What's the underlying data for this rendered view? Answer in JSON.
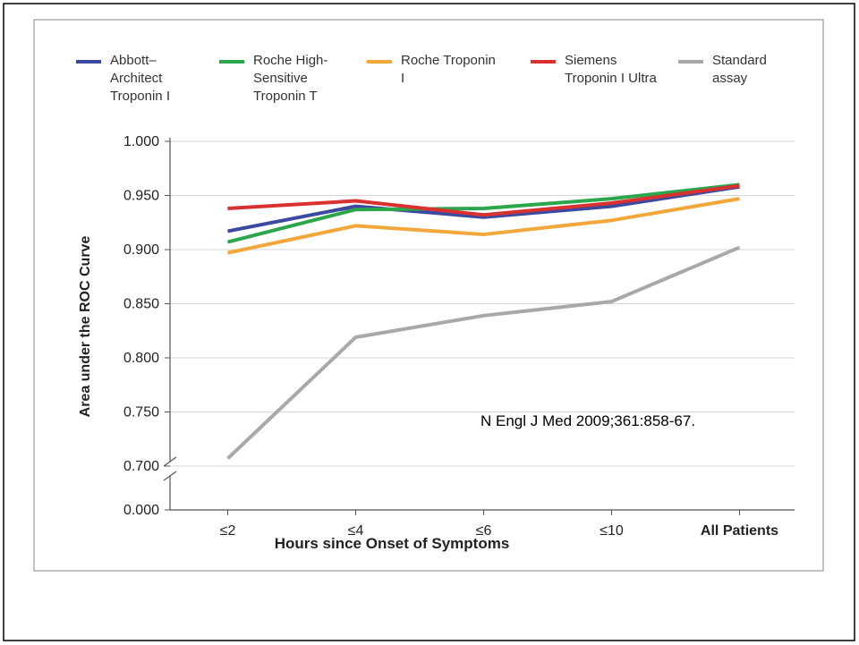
{
  "chart_data": {
    "type": "line",
    "y_label": "Area under the ROC Curve",
    "x_label": "Hours since Onset of Symptoms",
    "annotation": "N Engl J Med 2009;361:858-67.",
    "categories": [
      "≤2",
      "≤4",
      "≤6",
      "≤10",
      "All Patients"
    ],
    "series": [
      {
        "name": "Abbott–Architect Troponin I",
        "color": "#3b4aa0",
        "values": [
          0.917,
          0.94,
          0.93,
          0.94,
          0.958
        ]
      },
      {
        "name": "Roche High-Sensitive Troponin T",
        "color": "#2ca64b",
        "values": [
          0.907,
          0.937,
          0.938,
          0.947,
          0.96
        ]
      },
      {
        "name": "Roche Troponin I",
        "color": "#f2a73b",
        "values": [
          0.897,
          0.922,
          0.914,
          0.927,
          0.947
        ]
      },
      {
        "name": "Siemens Troponin I Ultra",
        "color": "#d8312f",
        "values": [
          0.938,
          0.945,
          0.932,
          0.943,
          0.959
        ]
      },
      {
        "name": "Standard assay",
        "color": "#a8a8a8",
        "values": [
          0.707,
          0.819,
          0.839,
          0.852,
          0.902
        ]
      }
    ],
    "ylim": [
      0.7,
      1.0
    ],
    "yticks": [
      {
        "value": 0.7,
        "label": "0.700"
      },
      {
        "value": 0.75,
        "label": "0.750"
      },
      {
        "value": 0.8,
        "label": "0.800"
      },
      {
        "value": 0.85,
        "label": "0.850"
      },
      {
        "value": 0.9,
        "label": "0.900"
      },
      {
        "value": 0.95,
        "label": "0.950"
      },
      {
        "value": 1.0,
        "label": "1.000"
      }
    ],
    "ybreak_ticks": [
      {
        "value": 0,
        "label": "0.000"
      }
    ],
    "grid": true
  }
}
